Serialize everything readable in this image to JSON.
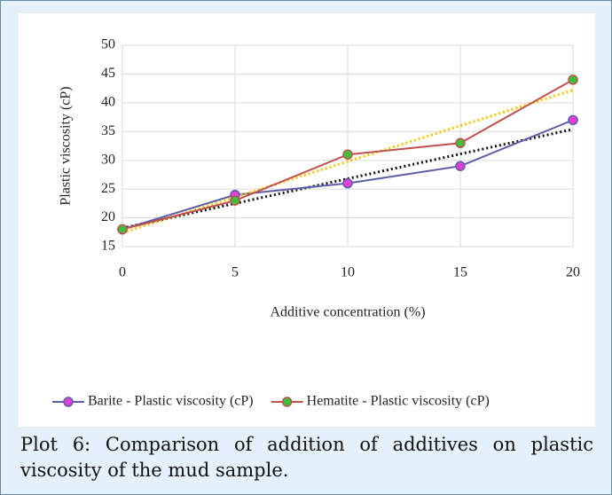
{
  "chart_data": {
    "type": "line",
    "xlabel": "Additive concentration (%)",
    "ylabel": "Plastic viscosity (cP)",
    "x": [
      0,
      5,
      10,
      15,
      20
    ],
    "xlim": [
      0,
      20
    ],
    "xticks": [
      0,
      5,
      10,
      15,
      20
    ],
    "ylim": [
      15,
      50
    ],
    "yticks": [
      15,
      20,
      25,
      30,
      35,
      40,
      45,
      50
    ],
    "grid": true,
    "legend": "bottom",
    "series": [
      {
        "name": "Barite - Plastic viscosity (cP)",
        "color": "#5b5ea6",
        "marker_color": "#e040d8",
        "trendline": true,
        "trendline_color": "#111111",
        "values": [
          18,
          24,
          26,
          29,
          37
        ]
      },
      {
        "name": "Hematite - Plastic viscosity (cP)",
        "color": "#c0504d",
        "marker_color": "#3cc03c",
        "trendline": true,
        "trendline_color": "#f5c400",
        "values": [
          18,
          23,
          31,
          33,
          44
        ]
      }
    ]
  },
  "caption": "Plot 6: Comparison of addition of additives on plastic viscosity of the mud sample."
}
